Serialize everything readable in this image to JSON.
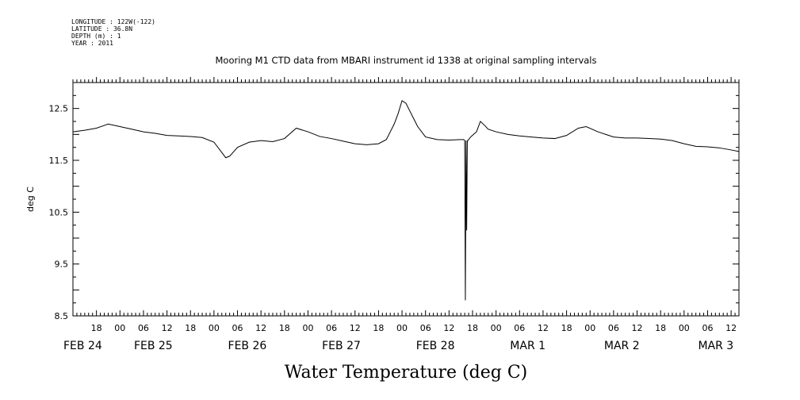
{
  "header": {
    "longitude": "LONGITUDE : 122W(-122)",
    "latitude": "LATITUDE : 36.8N",
    "depth": "DEPTH (m) : 1",
    "year": "YEAR : 2011"
  },
  "chart_data": {
    "type": "line",
    "title": "Mooring M1 CTD data from MBARI instrument id 1338 at original sampling intervals",
    "xlabel": "Water Temperature (deg C)",
    "ylabel": "deg C",
    "ylim": [
      8.5,
      13.0
    ],
    "yticks": [
      "8.5",
      "9.5",
      "10.5",
      "11.5",
      "12.5"
    ],
    "xlim": [
      "2011-02-24T12:00",
      "2011-03-03T14:00"
    ],
    "hour_tick_labels": [
      "18",
      "00",
      "06",
      "12",
      "18",
      "00",
      "06",
      "12",
      "18",
      "00",
      "06",
      "12",
      "18",
      "00",
      "06",
      "12",
      "18",
      "00",
      "06",
      "12",
      "18",
      "00",
      "06",
      "12",
      "18",
      "00",
      "06",
      "12"
    ],
    "day_labels": [
      "FEB 24",
      "FEB 25",
      "FEB 26",
      "FEB 27",
      "FEB 28",
      "MAR  1",
      "MAR  2",
      "MAR  3"
    ],
    "color": "#000000",
    "series": [
      {
        "x": [
          "2011-02-24T12:00",
          "2011-02-24T15:00",
          "2011-02-24T18:00",
          "2011-02-24T21:00",
          "2011-02-25T00:00",
          "2011-02-25T03:00",
          "2011-02-25T06:00",
          "2011-02-25T09:00",
          "2011-02-25T12:00",
          "2011-02-25T15:00",
          "2011-02-25T18:00",
          "2011-02-25T21:00",
          "2011-02-26T00:00",
          "2011-02-26T02:00",
          "2011-02-26T03:00",
          "2011-02-26T04:00",
          "2011-02-26T06:00",
          "2011-02-26T09:00",
          "2011-02-26T12:00",
          "2011-02-26T15:00",
          "2011-02-26T18:00",
          "2011-02-26T21:00",
          "2011-02-27T00:00",
          "2011-02-27T03:00",
          "2011-02-27T06:00",
          "2011-02-27T09:00",
          "2011-02-27T12:00",
          "2011-02-27T15:00",
          "2011-02-27T18:00",
          "2011-02-27T20:00",
          "2011-02-27T21:00",
          "2011-02-27T22:00",
          "2011-02-27T23:00",
          "2011-02-28T00:00",
          "2011-02-28T01:00",
          "2011-02-28T02:00",
          "2011-02-28T03:00",
          "2011-02-28T04:00",
          "2011-02-28T06:00",
          "2011-02-28T09:00",
          "2011-02-28T12:00",
          "2011-02-28T15:00",
          "2011-02-28T15:45",
          "2011-02-28T16:00",
          "2011-02-28T16:10",
          "2011-02-28T16:20",
          "2011-02-28T16:30",
          "2011-02-28T16:40",
          "2011-02-28T16:50",
          "2011-02-28T17:00",
          "2011-02-28T17:30",
          "2011-02-28T19:00",
          "2011-02-28T20:00",
          "2011-02-28T21:00",
          "2011-02-28T22:00",
          "2011-03-01T00:00",
          "2011-03-01T03:00",
          "2011-03-01T06:00",
          "2011-03-01T09:00",
          "2011-03-01T12:00",
          "2011-03-01T15:00",
          "2011-03-01T18:00",
          "2011-03-01T21:00",
          "2011-03-01T23:00",
          "2011-03-02T02:00",
          "2011-03-02T06:00",
          "2011-03-02T09:00",
          "2011-03-02T12:00",
          "2011-03-02T15:00",
          "2011-03-02T18:00",
          "2011-03-02T21:00",
          "2011-03-03T00:00",
          "2011-03-03T03:00",
          "2011-03-03T06:00",
          "2011-03-03T09:00",
          "2011-03-03T12:00",
          "2011-03-03T14:00"
        ],
        "y": [
          12.05,
          12.08,
          12.12,
          12.2,
          12.15,
          12.1,
          12.05,
          12.02,
          11.98,
          11.97,
          11.96,
          11.94,
          11.85,
          11.65,
          11.55,
          11.58,
          11.75,
          11.85,
          11.88,
          11.86,
          11.92,
          12.12,
          12.05,
          11.96,
          11.92,
          11.87,
          11.82,
          11.8,
          11.82,
          11.9,
          12.05,
          12.2,
          12.4,
          12.65,
          12.6,
          12.45,
          12.3,
          12.15,
          11.95,
          11.9,
          11.89,
          11.9,
          11.9,
          11.88,
          8.8,
          11.88,
          10.15,
          11.88,
          11.88,
          11.9,
          11.95,
          12.05,
          12.25,
          12.18,
          12.1,
          12.05,
          12.0,
          11.97,
          11.95,
          11.93,
          11.92,
          11.98,
          12.12,
          12.15,
          12.05,
          11.95,
          11.93,
          11.93,
          11.92,
          11.91,
          11.88,
          11.82,
          11.77,
          11.76,
          11.74,
          11.7,
          11.67
        ]
      }
    ]
  }
}
